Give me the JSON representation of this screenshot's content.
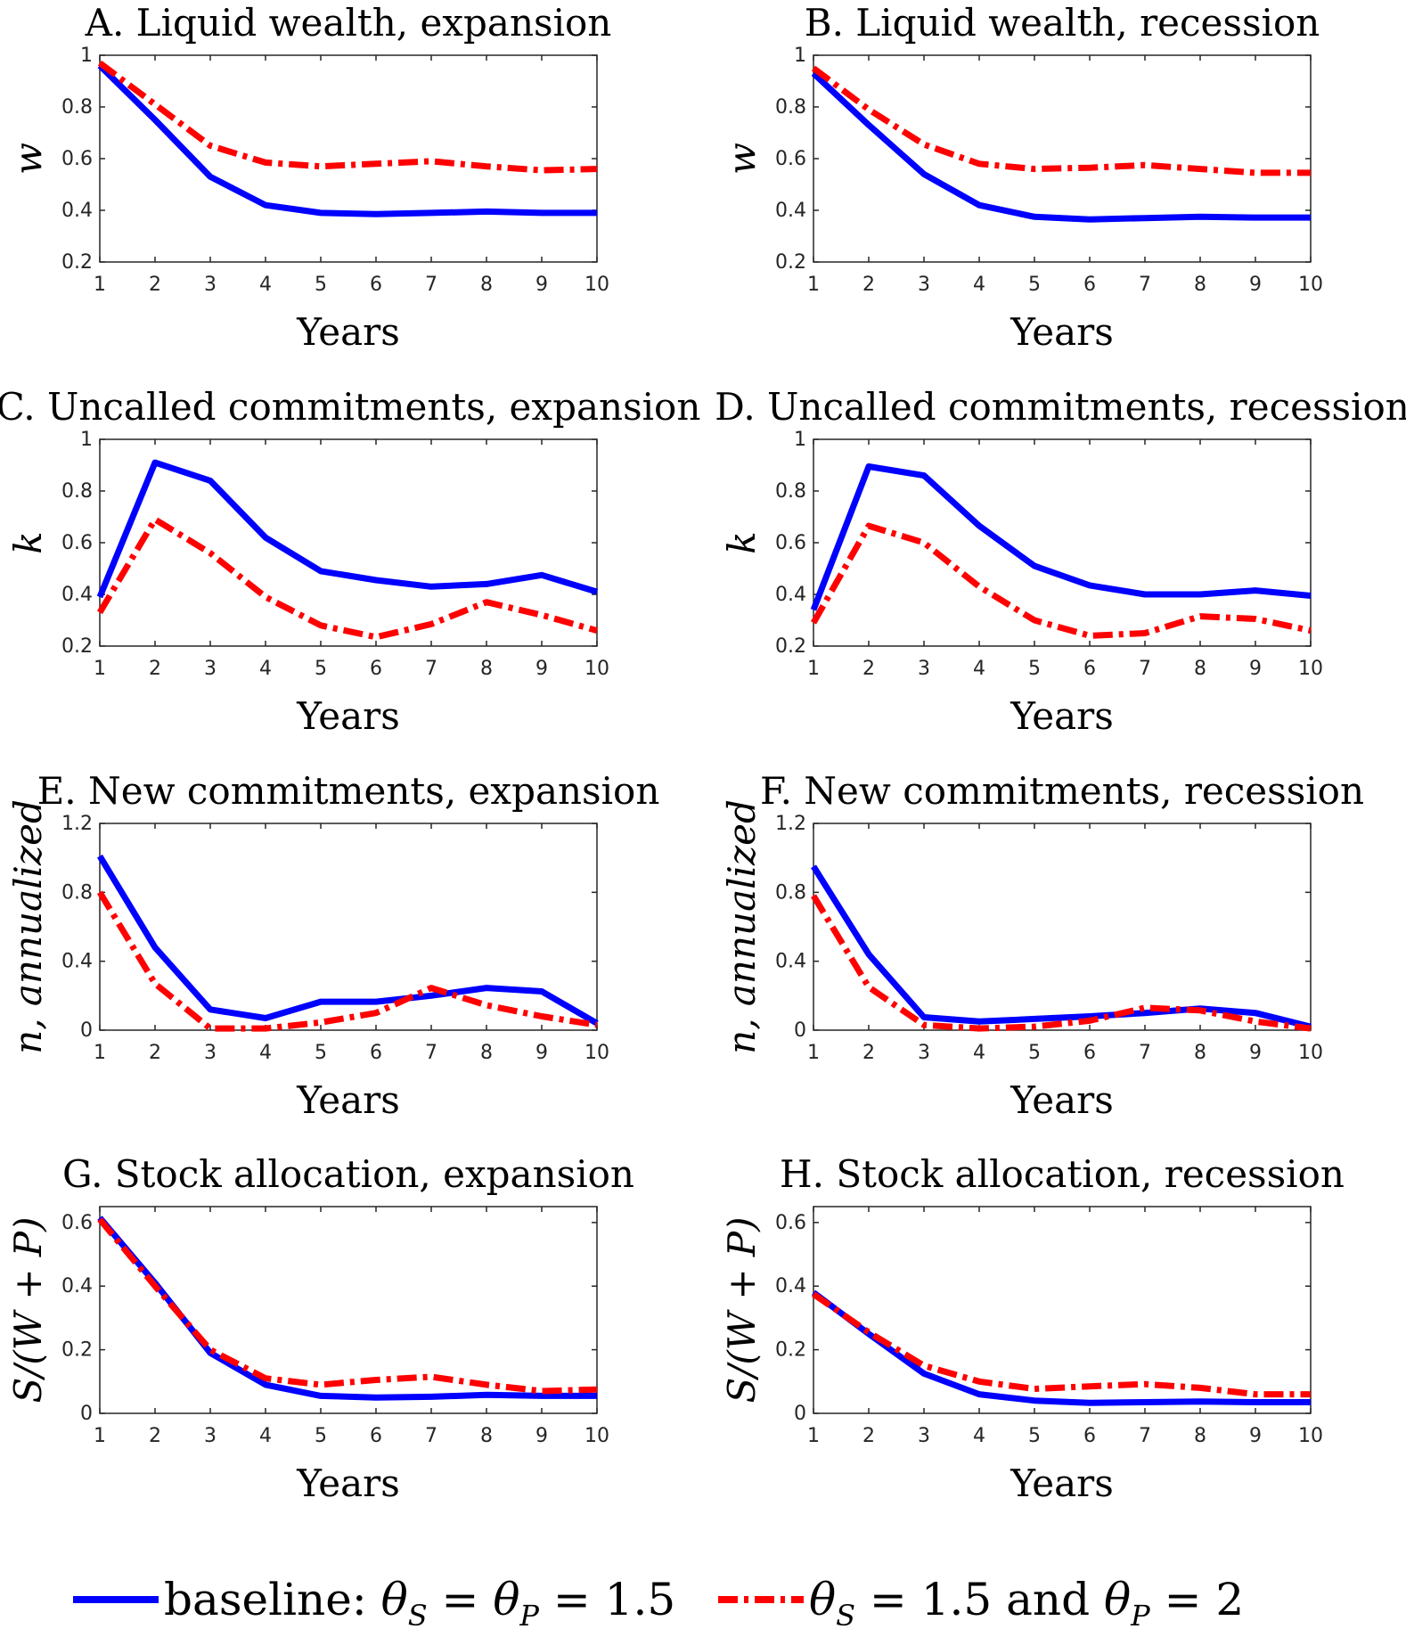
{
  "colors": {
    "baseline": "#0000FF",
    "alternative": "#FF0000",
    "axis": "#262626"
  },
  "legend": {
    "baseline_label": "baseline: θS = θP = 1.5",
    "alternative_label": "θS = 1.5 and θP = 2"
  },
  "chart_data": [
    {
      "type": "line",
      "title": "A. Liquid wealth, expansion",
      "xlabel": "Years",
      "ylabel": "w",
      "xlim": [
        1,
        10
      ],
      "ylim": [
        0.2,
        1
      ],
      "yticks": [
        0.2,
        0.4,
        0.6,
        0.8,
        1
      ],
      "ytick_labels": [
        "0.2",
        "0.4",
        "0.6",
        "0.8",
        "1"
      ],
      "x": [
        1,
        2,
        3,
        4,
        5,
        6,
        7,
        8,
        9,
        10
      ],
      "series": [
        {
          "values": [
            0.96,
            0.75,
            0.53,
            0.42,
            0.39,
            0.385,
            0.39,
            0.395,
            0.39,
            0.39
          ]
        },
        {
          "values": [
            0.97,
            0.81,
            0.65,
            0.585,
            0.57,
            0.58,
            0.59,
            0.57,
            0.555,
            0.56
          ]
        }
      ]
    },
    {
      "type": "line",
      "title": "B. Liquid wealth, recession",
      "xlabel": "Years",
      "ylabel": "w",
      "xlim": [
        1,
        10
      ],
      "ylim": [
        0.2,
        1
      ],
      "yticks": [
        0.2,
        0.4,
        0.6,
        0.8,
        1
      ],
      "ytick_labels": [
        "0.2",
        "0.4",
        "0.6",
        "0.8",
        "1"
      ],
      "x": [
        1,
        2,
        3,
        4,
        5,
        6,
        7,
        8,
        9,
        10
      ],
      "series": [
        {
          "values": [
            0.93,
            0.73,
            0.54,
            0.42,
            0.375,
            0.365,
            0.37,
            0.375,
            0.372,
            0.372
          ]
        },
        {
          "values": [
            0.95,
            0.79,
            0.655,
            0.58,
            0.56,
            0.565,
            0.575,
            0.56,
            0.545,
            0.545
          ]
        }
      ]
    },
    {
      "type": "line",
      "title": "C. Uncalled commitments, expansion",
      "xlabel": "Years",
      "ylabel": "k",
      "xlim": [
        1,
        10
      ],
      "ylim": [
        0.2,
        1
      ],
      "yticks": [
        0.2,
        0.4,
        0.6,
        0.8,
        1
      ],
      "ytick_labels": [
        "0.2",
        "0.4",
        "0.6",
        "0.8",
        "1"
      ],
      "x": [
        1,
        2,
        3,
        4,
        5,
        6,
        7,
        8,
        9,
        10
      ],
      "series": [
        {
          "values": [
            0.39,
            0.91,
            0.84,
            0.62,
            0.49,
            0.455,
            0.43,
            0.44,
            0.475,
            0.41
          ]
        },
        {
          "values": [
            0.33,
            0.69,
            0.56,
            0.39,
            0.28,
            0.235,
            0.285,
            0.37,
            0.32,
            0.26
          ]
        }
      ]
    },
    {
      "type": "line",
      "title": "D. Uncalled commitments, recession",
      "xlabel": "Years",
      "ylabel": "k",
      "xlim": [
        1,
        10
      ],
      "ylim": [
        0.2,
        1
      ],
      "yticks": [
        0.2,
        0.4,
        0.6,
        0.8,
        1
      ],
      "ytick_labels": [
        "0.2",
        "0.4",
        "0.6",
        "0.8",
        "1"
      ],
      "x": [
        1,
        2,
        3,
        4,
        5,
        6,
        7,
        8,
        9,
        10
      ],
      "series": [
        {
          "values": [
            0.34,
            0.895,
            0.86,
            0.665,
            0.51,
            0.435,
            0.4,
            0.4,
            0.415,
            0.395
          ]
        },
        {
          "values": [
            0.29,
            0.665,
            0.6,
            0.43,
            0.3,
            0.24,
            0.25,
            0.315,
            0.305,
            0.26
          ]
        }
      ]
    },
    {
      "type": "line",
      "title": "E. New commitments, expansion",
      "xlabel": "Years",
      "ylabel": "n, annualized",
      "xlim": [
        1,
        10
      ],
      "ylim": [
        0,
        1.2
      ],
      "yticks": [
        0,
        0.4,
        0.8,
        1.2
      ],
      "ytick_labels": [
        "0",
        "0.4",
        "0.8",
        "1.2"
      ],
      "x": [
        1,
        2,
        3,
        4,
        5,
        6,
        7,
        8,
        9,
        10
      ],
      "series": [
        {
          "values": [
            1.01,
            0.48,
            0.12,
            0.07,
            0.165,
            0.165,
            0.2,
            0.245,
            0.225,
            0.04
          ]
        },
        {
          "values": [
            0.8,
            0.27,
            0.01,
            0.01,
            0.045,
            0.1,
            0.245,
            0.145,
            0.08,
            0.03
          ]
        }
      ]
    },
    {
      "type": "line",
      "title": "F. New commitments, recession",
      "xlabel": "Years",
      "ylabel": "n, annualized",
      "xlim": [
        1,
        10
      ],
      "ylim": [
        0,
        1.2
      ],
      "yticks": [
        0,
        0.4,
        0.8,
        1.2
      ],
      "ytick_labels": [
        "0",
        "0.4",
        "0.8",
        "1.2"
      ],
      "x": [
        1,
        2,
        3,
        4,
        5,
        6,
        7,
        8,
        9,
        10
      ],
      "series": [
        {
          "values": [
            0.95,
            0.44,
            0.075,
            0.05,
            0.065,
            0.08,
            0.1,
            0.125,
            0.1,
            0.02
          ]
        },
        {
          "values": [
            0.78,
            0.25,
            0.03,
            0.01,
            0.02,
            0.055,
            0.13,
            0.115,
            0.05,
            0.01
          ]
        }
      ]
    },
    {
      "type": "line",
      "title": "G. Stock allocation, expansion",
      "xlabel": "Years",
      "ylabel": "S/(W + P)",
      "xlim": [
        1,
        10
      ],
      "ylim": [
        0,
        0.65
      ],
      "yticks": [
        0,
        0.2,
        0.4,
        0.6
      ],
      "ytick_labels": [
        "0",
        "0.2",
        "0.4",
        "0.6"
      ],
      "x": [
        1,
        2,
        3,
        4,
        5,
        6,
        7,
        8,
        9,
        10
      ],
      "series": [
        {
          "values": [
            0.615,
            0.41,
            0.19,
            0.09,
            0.055,
            0.05,
            0.052,
            0.058,
            0.055,
            0.055
          ]
        },
        {
          "values": [
            0.61,
            0.4,
            0.2,
            0.11,
            0.09,
            0.105,
            0.115,
            0.09,
            0.07,
            0.075
          ]
        }
      ]
    },
    {
      "type": "line",
      "title": "H. Stock allocation, recession",
      "xlabel": "Years",
      "ylabel": "S/(W + P)",
      "xlim": [
        1,
        10
      ],
      "ylim": [
        0,
        0.65
      ],
      "yticks": [
        0,
        0.2,
        0.4,
        0.6
      ],
      "ytick_labels": [
        "0",
        "0.2",
        "0.4",
        "0.6"
      ],
      "x": [
        1,
        2,
        3,
        4,
        5,
        6,
        7,
        8,
        9,
        10
      ],
      "series": [
        {
          "values": [
            0.38,
            0.25,
            0.125,
            0.06,
            0.04,
            0.033,
            0.035,
            0.037,
            0.035,
            0.035
          ]
        },
        {
          "values": [
            0.375,
            0.255,
            0.15,
            0.1,
            0.077,
            0.085,
            0.092,
            0.08,
            0.06,
            0.06
          ]
        }
      ]
    }
  ]
}
